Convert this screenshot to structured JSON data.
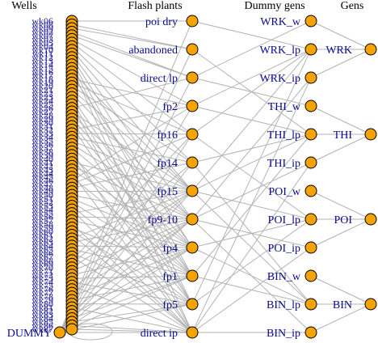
{
  "headers": {
    "wells": "Wells",
    "flash": "Flash plants",
    "dummy": "Dummy gens",
    "gens": "Gens"
  },
  "colors": {
    "node": "#f5a300",
    "edge": "#b3b3b3",
    "label": "#0b0b8c"
  },
  "flash_plants": [
    "poi dry",
    "abandoned",
    "direct lp",
    "fp2",
    "fp16",
    "fp14",
    "fp15",
    "fp9-10",
    "fp4",
    "fp1",
    "fp5",
    "direct ip"
  ],
  "dummy_gens": [
    "WRK_w",
    "WRK_lp",
    "WRK_ip",
    "THI_w",
    "THI_lp",
    "THI_ip",
    "POI_w",
    "POI_lp",
    "POI_ip",
    "BIN_w",
    "BIN_lp",
    "BIN_ip"
  ],
  "gens": [
    "WRK",
    "THI",
    "POI",
    "BIN"
  ],
  "wells": [
    "wk06",
    "wk08",
    "wk09",
    "wk02",
    "wk07",
    "wk03",
    "wk05",
    "wk04",
    "wk10",
    "wk11",
    "wk12",
    "wk13",
    "wk14",
    "wk15",
    "wk16",
    "wk17",
    "wk18",
    "wk19",
    "wk20",
    "wk21",
    "wk22",
    "wk23",
    "wk24",
    "wk25",
    "wk26",
    "wk27",
    "wk28",
    "wk29",
    "wk30",
    "wk31",
    "wk32",
    "wk33",
    "wk34",
    "wk35",
    "wk36",
    "wk37",
    "wk38",
    "wk39",
    "wk40",
    "wk41",
    "wk42",
    "wk43",
    "wk44",
    "wk45",
    "wk46",
    "wk47",
    "wk48",
    "wk49",
    "wk50",
    "wk51",
    "wk52",
    "wk53",
    "wk54",
    "wk55",
    "wk56",
    "wk57",
    "wk58",
    "wk59",
    "wk60",
    "wk61",
    "wk62",
    "wk63",
    "wk64",
    "wk65",
    "wk66",
    "wk67",
    "wk68",
    "wk69",
    "wk70",
    "wk71",
    "wk72",
    "wk73",
    "wk74",
    "wk75",
    "wk76",
    "wk77",
    "wk78",
    "wk79",
    "wk80",
    "wk81",
    "wk82",
    "wk83",
    "wk84",
    "wk85",
    "wk86",
    "wk87"
  ],
  "dummy_well": "DUMMY",
  "edges": {
    "well_to_flash": [
      [
        0,
        0
      ],
      [
        1,
        1
      ],
      [
        2,
        1
      ],
      [
        3,
        2
      ],
      [
        4,
        2
      ],
      [
        5,
        3
      ],
      [
        6,
        4
      ],
      [
        7,
        5
      ],
      [
        8,
        6
      ],
      [
        9,
        7
      ],
      [
        10,
        8
      ],
      [
        11,
        9
      ],
      [
        12,
        10
      ],
      [
        13,
        11
      ],
      [
        14,
        6
      ],
      [
        15,
        8
      ],
      [
        16,
        3
      ],
      [
        17,
        4
      ],
      [
        18,
        5
      ],
      [
        19,
        6
      ],
      [
        20,
        7
      ],
      [
        21,
        9
      ],
      [
        22,
        10
      ],
      [
        23,
        11
      ],
      [
        24,
        2
      ],
      [
        25,
        6
      ],
      [
        26,
        7
      ],
      [
        27,
        8
      ],
      [
        28,
        9
      ],
      [
        29,
        10
      ],
      [
        30,
        3
      ],
      [
        31,
        4
      ],
      [
        32,
        5
      ],
      [
        33,
        6
      ],
      [
        34,
        7
      ],
      [
        35,
        8
      ],
      [
        36,
        11
      ],
      [
        37,
        9
      ],
      [
        38,
        10
      ],
      [
        39,
        6
      ],
      [
        40,
        7
      ],
      [
        41,
        8
      ],
      [
        42,
        11
      ],
      [
        43,
        9
      ],
      [
        44,
        3
      ],
      [
        45,
        4
      ],
      [
        46,
        5
      ],
      [
        47,
        6
      ],
      [
        48,
        7
      ],
      [
        49,
        8
      ],
      [
        50,
        9
      ],
      [
        51,
        10
      ],
      [
        52,
        11
      ],
      [
        53,
        6
      ],
      [
        54,
        7
      ],
      [
        55,
        8
      ],
      [
        56,
        11
      ],
      [
        57,
        9
      ],
      [
        58,
        10
      ],
      [
        59,
        11
      ],
      [
        60,
        6
      ],
      [
        61,
        7
      ],
      [
        62,
        8
      ],
      [
        63,
        9
      ],
      [
        64,
        10
      ],
      [
        65,
        11
      ],
      [
        66,
        4
      ],
      [
        67,
        5
      ],
      [
        68,
        6
      ],
      [
        69,
        7
      ],
      [
        70,
        8
      ],
      [
        71,
        9
      ],
      [
        72,
        10
      ],
      [
        73,
        11
      ],
      [
        74,
        6
      ],
      [
        75,
        7
      ],
      [
        76,
        8
      ],
      [
        77,
        9
      ],
      [
        78,
        10
      ],
      [
        79,
        11
      ],
      [
        80,
        7
      ],
      [
        81,
        8
      ],
      [
        82,
        9
      ],
      [
        83,
        10
      ],
      [
        84,
        11
      ],
      [
        85,
        11
      ]
    ],
    "dummywell_to_flash": [
      0,
      1,
      2,
      3,
      4,
      5,
      6,
      7,
      8,
      9,
      10,
      11
    ],
    "flash_to_dummy": [
      [
        0,
        1
      ],
      [
        1,
        4
      ],
      [
        2,
        0
      ],
      [
        2,
        3
      ],
      [
        3,
        1
      ],
      [
        3,
        4
      ],
      [
        4,
        1
      ],
      [
        4,
        7
      ],
      [
        5,
        4
      ],
      [
        5,
        10
      ],
      [
        6,
        1
      ],
      [
        6,
        4
      ],
      [
        6,
        7
      ],
      [
        6,
        10
      ],
      [
        7,
        2
      ],
      [
        7,
        5
      ],
      [
        7,
        8
      ],
      [
        7,
        11
      ],
      [
        8,
        7
      ],
      [
        8,
        10
      ],
      [
        9,
        4
      ],
      [
        9,
        10
      ],
      [
        10,
        1
      ],
      [
        10,
        7
      ],
      [
        11,
        2
      ],
      [
        11,
        5
      ],
      [
        11,
        8
      ],
      [
        11,
        11
      ]
    ],
    "dummy_to_gen": [
      [
        0,
        0
      ],
      [
        1,
        0
      ],
      [
        2,
        0
      ],
      [
        3,
        1
      ],
      [
        4,
        1
      ],
      [
        5,
        1
      ],
      [
        6,
        2
      ],
      [
        7,
        2
      ],
      [
        8,
        2
      ],
      [
        9,
        3
      ],
      [
        10,
        3
      ],
      [
        11,
        3
      ]
    ]
  }
}
